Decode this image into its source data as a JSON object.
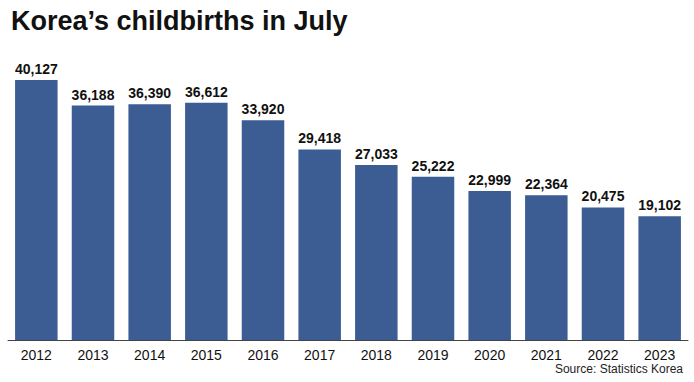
{
  "chart_data": {
    "type": "bar",
    "title": "Korea’s childbirths in July",
    "source": "Source: Statistics Korea",
    "categories": [
      "2012",
      "2013",
      "2014",
      "2015",
      "2016",
      "2017",
      "2018",
      "2019",
      "2020",
      "2021",
      "2022",
      "2023"
    ],
    "values": [
      40127,
      36188,
      36390,
      36612,
      33920,
      29418,
      27033,
      25222,
      22999,
      22364,
      20475,
      19102
    ],
    "value_labels": [
      "40,127",
      "36,188",
      "36,390",
      "36,612",
      "33,920",
      "29,418",
      "27,033",
      "25,222",
      "22,999",
      "22,364",
      "20,475",
      "19,102"
    ],
    "color": "#3b5d93",
    "ylim": [
      0,
      44000
    ],
    "grid": false,
    "data_labels": true,
    "tick_labels": "x"
  }
}
